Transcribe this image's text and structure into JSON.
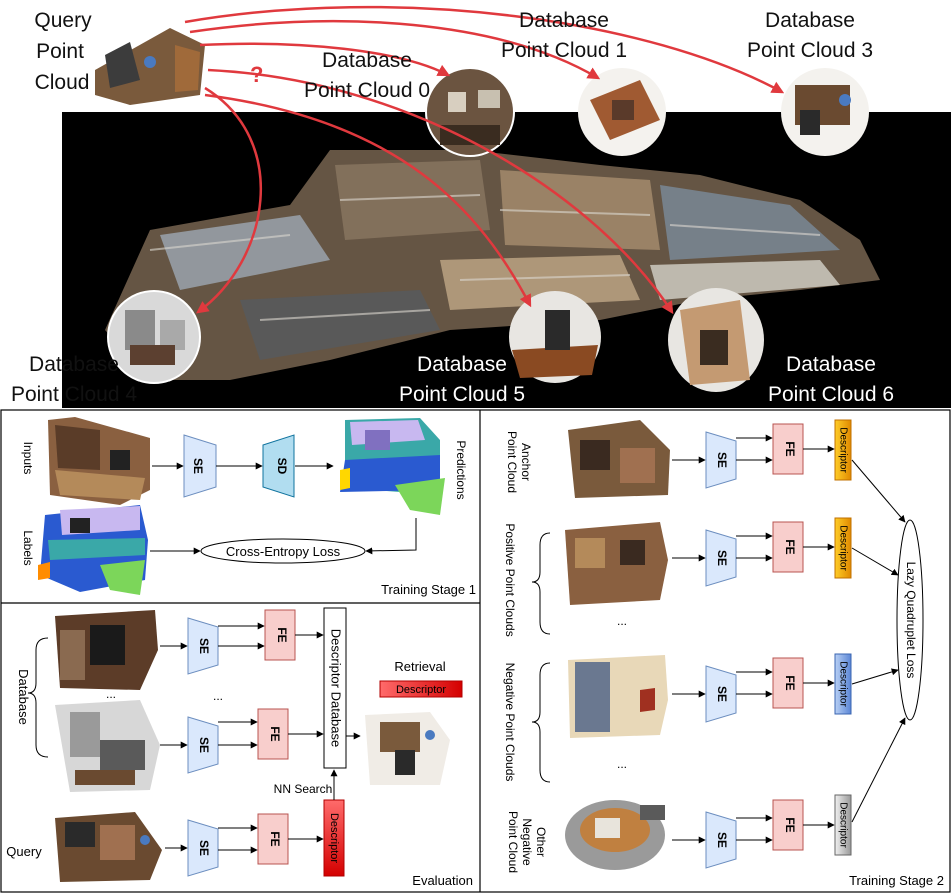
{
  "top": {
    "query_label": [
      "Query",
      "Point",
      "Cloud"
    ],
    "question_mark": "?",
    "db0": [
      "Database",
      "Point Cloud 0"
    ],
    "db1": [
      "Database",
      "Point Cloud 1"
    ],
    "db3": [
      "Database",
      "Point Cloud 3"
    ],
    "db4": [
      "Database",
      "Point Cloud 4"
    ],
    "db5": [
      "Database",
      "Point Cloud 5"
    ],
    "db6": [
      "Database",
      "Point Cloud 6"
    ]
  },
  "stage1": {
    "inputs": "Inputs",
    "labels": "Labels",
    "predictions": "Predictions",
    "se": "SE",
    "sd": "SD",
    "loss": "Cross-Entropy Loss",
    "title": "Training Stage 1"
  },
  "evaluation": {
    "database": "Database",
    "query": "Query",
    "se": "SE",
    "fe": "FE",
    "dots": "...",
    "descriptor_db": "Descriptor Database",
    "retrieval": "Retrieval",
    "descriptor": "Descriptor",
    "nn_search": "NN Search",
    "title": "Evaluation"
  },
  "stage2": {
    "anchor": [
      "Anchor",
      "Point Cloud"
    ],
    "positive": "Positive Point Clouds",
    "negative": "Negative Point Clouds",
    "other_negative": [
      "Other",
      "Negative",
      "Point Cloud"
    ],
    "se": "SE",
    "fe": "FE",
    "descriptor": "Descriptor",
    "dots": "...",
    "loss": "Lazy Quadruplet Loss",
    "title": "Training Stage 2"
  },
  "colors": {
    "se_fill": "#dae8fc",
    "se_stroke": "#6c8ebf",
    "sd_fill": "#b1ddf0",
    "sd_stroke": "#10739e",
    "fe_fill": "#f8cecc",
    "fe_stroke": "#b85450",
    "desc_orange": "#f0a30a",
    "desc_blue": "#7ea6e0",
    "desc_gray": "#bdbdbd",
    "desc_red": "#e51400",
    "arrow_red": "#e0393e"
  }
}
